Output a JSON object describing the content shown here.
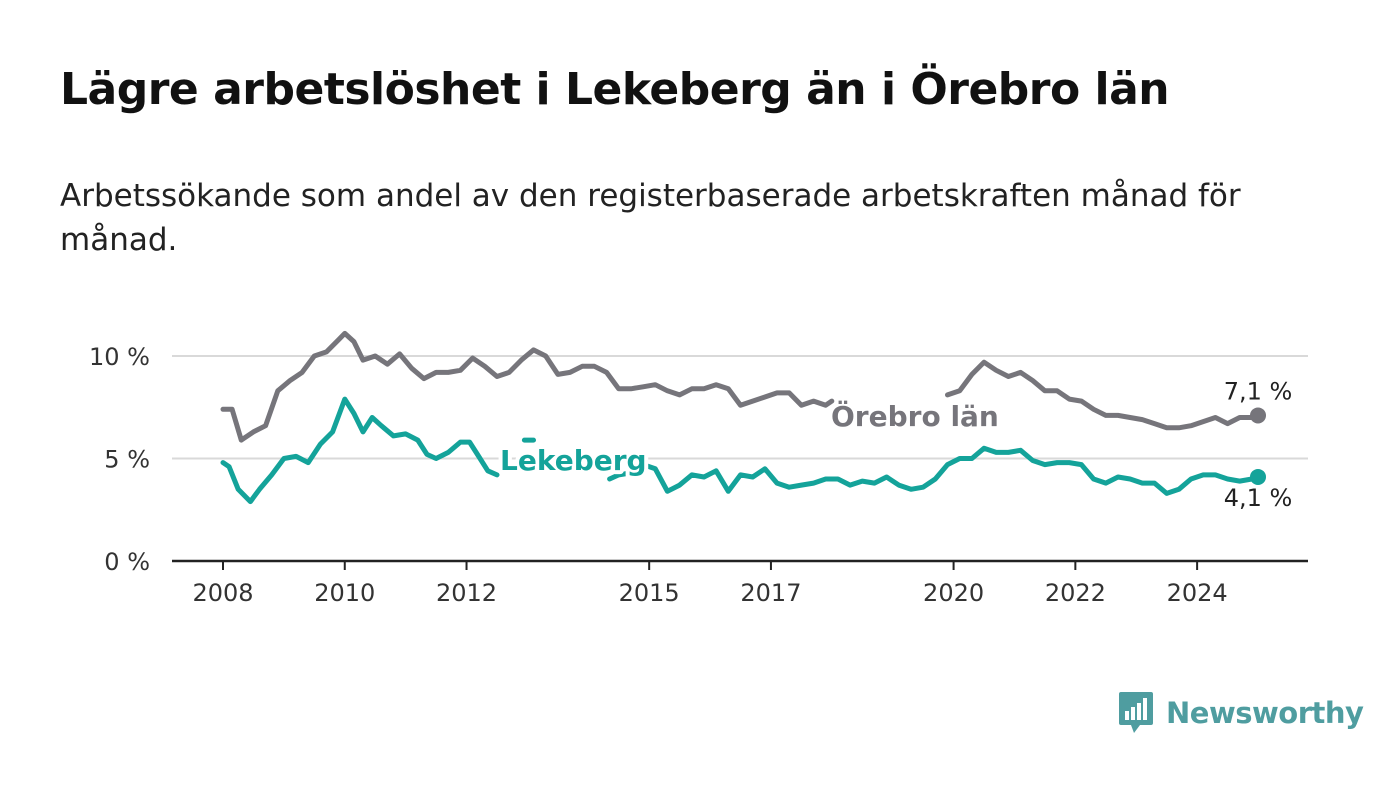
{
  "header": {
    "title": "Lägre arbetslöshet i Lekeberg än i Örebro län",
    "subtitle": "Arbetssökande som andel av den registerbaserade arbetskraften månad för månad."
  },
  "brand": {
    "name": "Newsworthy",
    "icon": "newsworthy-logo-icon",
    "color": "#4f9da0"
  },
  "chart_data": {
    "type": "line",
    "ylim": [
      0,
      10.4
    ],
    "xlim": [
      2008.0,
      2026.9
    ],
    "y_ticks": [
      0,
      5,
      10
    ],
    "y_tick_labels": [
      "0 %",
      "5 %",
      "10 %"
    ],
    "x_ticks": [
      2008,
      2010,
      2012,
      2015,
      2017,
      2020,
      2022,
      2024
    ],
    "x_tick_labels": [
      "2008",
      "2010",
      "2012",
      "2015",
      "2017",
      "2020",
      "2022",
      "2024"
    ],
    "grid": true,
    "series": [
      {
        "name": "Örebro län",
        "color": "#76757b",
        "end_label": "7,1 %",
        "points": [
          [
            2008.0,
            7.4
          ],
          [
            2008.15,
            7.4
          ],
          [
            2008.3,
            5.9
          ],
          [
            2008.5,
            6.3
          ],
          [
            2008.7,
            6.6
          ],
          [
            2008.9,
            8.3
          ],
          [
            2009.1,
            8.8
          ],
          [
            2009.3,
            9.2
          ],
          [
            2009.5,
            10.0
          ],
          [
            2009.7,
            10.2
          ],
          [
            2009.9,
            10.8
          ],
          [
            2010.0,
            11.1
          ],
          [
            2010.15,
            10.7
          ],
          [
            2010.3,
            9.8
          ],
          [
            2010.5,
            10.0
          ],
          [
            2010.7,
            9.6
          ],
          [
            2010.9,
            10.1
          ],
          [
            2011.1,
            9.4
          ],
          [
            2011.3,
            8.9
          ],
          [
            2011.5,
            9.2
          ],
          [
            2011.7,
            9.2
          ],
          [
            2011.9,
            9.3
          ],
          [
            2012.1,
            9.9
          ],
          [
            2012.3,
            9.5
          ],
          [
            2012.5,
            9.0
          ],
          [
            2012.7,
            9.2
          ],
          [
            2012.9,
            9.8
          ],
          [
            2013.1,
            10.3
          ],
          [
            2013.3,
            10.0
          ],
          [
            2013.5,
            9.1
          ],
          [
            2013.7,
            9.2
          ],
          [
            2013.9,
            9.5
          ],
          [
            2014.1,
            9.5
          ],
          [
            2014.3,
            9.2
          ],
          [
            2014.5,
            8.4
          ],
          [
            2014.7,
            8.4
          ],
          [
            2014.9,
            8.5
          ],
          [
            2015.1,
            8.6
          ],
          [
            2015.3,
            8.3
          ],
          [
            2015.5,
            8.1
          ],
          [
            2015.7,
            8.4
          ],
          [
            2015.9,
            8.4
          ],
          [
            2016.1,
            8.6
          ],
          [
            2016.3,
            8.4
          ],
          [
            2016.5,
            7.6
          ],
          [
            2016.7,
            7.8
          ],
          [
            2016.9,
            8.0
          ],
          [
            2017.1,
            8.2
          ],
          [
            2017.3,
            8.2
          ],
          [
            2017.5,
            7.6
          ],
          [
            2017.7,
            7.8
          ],
          [
            2017.9,
            7.6
          ],
          [
            2018.0,
            7.8
          ],
          [
            2019.9,
            8.1
          ],
          [
            2020.1,
            8.3
          ],
          [
            2020.3,
            9.1
          ],
          [
            2020.5,
            9.7
          ],
          [
            2020.7,
            9.3
          ],
          [
            2020.9,
            9.0
          ],
          [
            2021.1,
            9.2
          ],
          [
            2021.3,
            8.8
          ],
          [
            2021.5,
            8.3
          ],
          [
            2021.7,
            8.3
          ],
          [
            2021.9,
            7.9
          ],
          [
            2022.1,
            7.8
          ],
          [
            2022.3,
            7.4
          ],
          [
            2022.5,
            7.1
          ],
          [
            2022.7,
            7.1
          ],
          [
            2022.9,
            7.0
          ],
          [
            2023.1,
            6.9
          ],
          [
            2023.3,
            6.7
          ],
          [
            2023.5,
            6.5
          ],
          [
            2023.7,
            6.5
          ],
          [
            2023.9,
            6.6
          ],
          [
            2024.1,
            6.8
          ],
          [
            2024.3,
            7.0
          ],
          [
            2024.5,
            6.7
          ],
          [
            2024.7,
            7.0
          ],
          [
            2024.9,
            7.0
          ],
          [
            2025.0,
            7.1
          ]
        ]
      },
      {
        "name": "Lekeberg",
        "color": "#14a39a",
        "end_label": "4,1 %",
        "points": [
          [
            2008.0,
            4.8
          ],
          [
            2008.1,
            4.6
          ],
          [
            2008.25,
            3.5
          ],
          [
            2008.45,
            2.9
          ],
          [
            2008.6,
            3.5
          ],
          [
            2008.8,
            4.2
          ],
          [
            2009.0,
            5.0
          ],
          [
            2009.2,
            5.1
          ],
          [
            2009.4,
            4.8
          ],
          [
            2009.6,
            5.7
          ],
          [
            2009.8,
            6.3
          ],
          [
            2010.0,
            7.9
          ],
          [
            2010.15,
            7.2
          ],
          [
            2010.3,
            6.3
          ],
          [
            2010.45,
            7.0
          ],
          [
            2010.6,
            6.6
          ],
          [
            2010.8,
            6.1
          ],
          [
            2011.0,
            6.2
          ],
          [
            2011.2,
            5.9
          ],
          [
            2011.35,
            5.2
          ],
          [
            2011.5,
            5.0
          ],
          [
            2011.7,
            5.3
          ],
          [
            2011.9,
            5.8
          ],
          [
            2012.05,
            5.8
          ],
          [
            2012.2,
            5.1
          ],
          [
            2012.35,
            4.4
          ],
          [
            2012.5,
            4.2
          ],
          [
            2012.95,
            5.9
          ],
          [
            2013.1,
            5.9
          ],
          [
            2014.35,
            4.0
          ],
          [
            2014.5,
            4.2
          ],
          [
            2014.7,
            4.3
          ],
          [
            2014.9,
            4.7
          ],
          [
            2015.1,
            4.5
          ],
          [
            2015.3,
            3.4
          ],
          [
            2015.5,
            3.7
          ],
          [
            2015.7,
            4.2
          ],
          [
            2015.9,
            4.1
          ],
          [
            2016.1,
            4.4
          ],
          [
            2016.3,
            3.4
          ],
          [
            2016.5,
            4.2
          ],
          [
            2016.7,
            4.1
          ],
          [
            2016.9,
            4.5
          ],
          [
            2017.1,
            3.8
          ],
          [
            2017.3,
            3.6
          ],
          [
            2017.5,
            3.7
          ],
          [
            2017.7,
            3.8
          ],
          [
            2017.9,
            4.0
          ],
          [
            2018.1,
            4.0
          ],
          [
            2018.3,
            3.7
          ],
          [
            2018.5,
            3.9
          ],
          [
            2018.7,
            3.8
          ],
          [
            2018.9,
            4.1
          ],
          [
            2019.1,
            3.7
          ],
          [
            2019.3,
            3.5
          ],
          [
            2019.5,
            3.6
          ],
          [
            2019.7,
            4.0
          ],
          [
            2019.9,
            4.7
          ],
          [
            2020.1,
            5.0
          ],
          [
            2020.3,
            5.0
          ],
          [
            2020.5,
            5.5
          ],
          [
            2020.7,
            5.3
          ],
          [
            2020.9,
            5.3
          ],
          [
            2021.1,
            5.4
          ],
          [
            2021.3,
            4.9
          ],
          [
            2021.5,
            4.7
          ],
          [
            2021.7,
            4.8
          ],
          [
            2021.9,
            4.8
          ],
          [
            2022.1,
            4.7
          ],
          [
            2022.3,
            4.0
          ],
          [
            2022.5,
            3.8
          ],
          [
            2022.7,
            4.1
          ],
          [
            2022.9,
            4.0
          ],
          [
            2023.1,
            3.8
          ],
          [
            2023.3,
            3.8
          ],
          [
            2023.5,
            3.3
          ],
          [
            2023.7,
            3.5
          ],
          [
            2023.9,
            4.0
          ],
          [
            2024.1,
            4.2
          ],
          [
            2024.3,
            4.2
          ],
          [
            2024.5,
            4.0
          ],
          [
            2024.7,
            3.9
          ],
          [
            2024.9,
            4.0
          ],
          [
            2025.0,
            4.1
          ]
        ]
      }
    ]
  }
}
